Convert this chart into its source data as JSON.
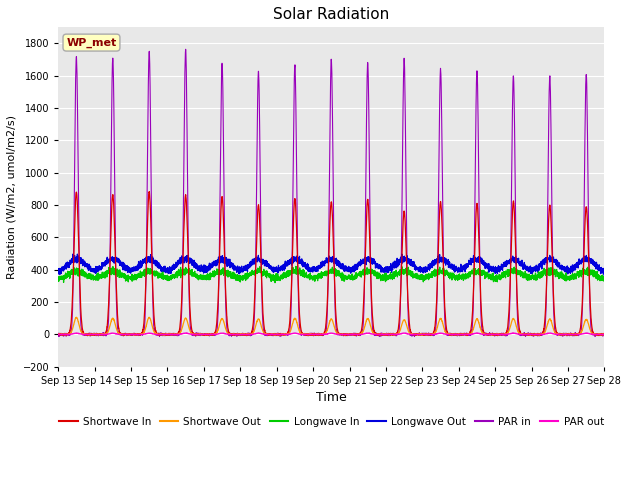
{
  "title": "Solar Radiation",
  "xlabel": "Time",
  "ylabel": "Radiation (W/m2, umol/m2/s)",
  "ylim": [
    -200,
    1900
  ],
  "yticks": [
    -200,
    0,
    200,
    400,
    600,
    800,
    1000,
    1200,
    1400,
    1600,
    1800
  ],
  "num_days": 15,
  "background_color": "#e8e8e8",
  "station_label": "WP_met",
  "series": {
    "shortwave_in": {
      "color": "#dd0000",
      "label": "Shortwave In"
    },
    "shortwave_out": {
      "color": "#ff9900",
      "label": "Shortwave Out"
    },
    "longwave_in": {
      "color": "#00cc00",
      "label": "Longwave In"
    },
    "longwave_out": {
      "color": "#0000dd",
      "label": "Longwave Out"
    },
    "par_in": {
      "color": "#9900bb",
      "label": "PAR in"
    },
    "par_out": {
      "color": "#ff00cc",
      "label": "PAR out"
    }
  },
  "x_tick_labels": [
    "Sep 13",
    "Sep 14",
    "Sep 15",
    "Sep 16",
    "Sep 17",
    "Sep 18",
    "Sep 19",
    "Sep 20",
    "Sep 21",
    "Sep 22",
    "Sep 23",
    "Sep 24",
    "Sep 25",
    "Sep 26",
    "Sep 27",
    "Sep 28"
  ],
  "sw_in_peaks": [
    880,
    865,
    880,
    860,
    850,
    800,
    840,
    820,
    835,
    760,
    820,
    810,
    820,
    800,
    790
  ],
  "par_in_peaks": [
    1720,
    1710,
    1750,
    1760,
    1680,
    1625,
    1665,
    1700,
    1680,
    1700,
    1640,
    1630,
    1600,
    1600,
    1610
  ],
  "sw_out_peaks": [
    105,
    100,
    105,
    100,
    98,
    95,
    100,
    95,
    98,
    90,
    98,
    95,
    98,
    95,
    93
  ],
  "lw_in_base": 335,
  "lw_out_base": 375,
  "lw_in_day_bump": 55,
  "lw_out_day_bump": 90
}
